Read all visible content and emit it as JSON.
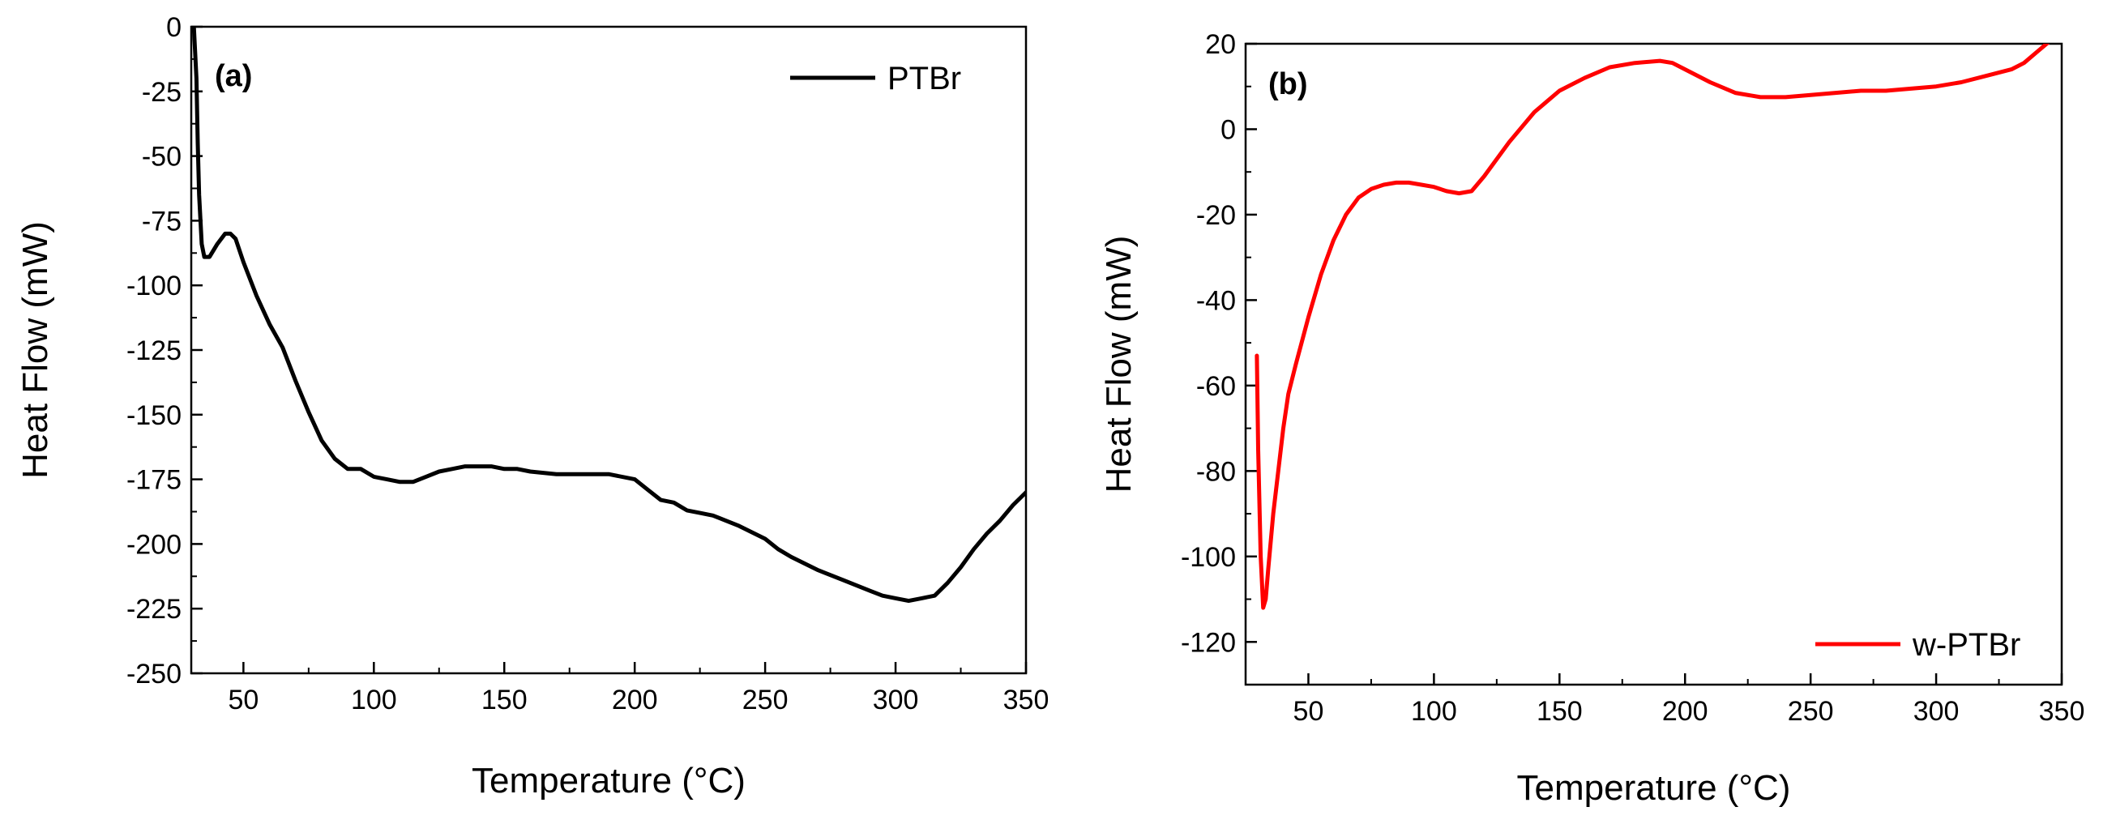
{
  "chart_data": [
    {
      "type": "line",
      "panel_label": "(a)",
      "title": "",
      "xlabel": "Temperature (°C)",
      "ylabel": "Heat Flow (mW)",
      "xlim": [
        30,
        350
      ],
      "ylim": [
        -250,
        0
      ],
      "xticks": [
        50,
        100,
        150,
        200,
        250,
        300,
        350
      ],
      "yticks": [
        0,
        -25,
        -50,
        -75,
        -100,
        -125,
        -150,
        -175,
        -200,
        -225,
        -250
      ],
      "xtick_labels": [
        "50",
        "100",
        "150",
        "200",
        "250",
        "300",
        "350"
      ],
      "ytick_labels": [
        "0",
        "-25",
        "-50",
        "-75",
        "-100",
        "-125",
        "-150",
        "-175",
        "-200",
        "-225",
        "-250"
      ],
      "legend_position": "top-right",
      "series": [
        {
          "name": "PTBr",
          "color": "#000000",
          "x": [
            31,
            32,
            32.5,
            33,
            34,
            35,
            37,
            40,
            43,
            45,
            47,
            50,
            55,
            60,
            65,
            70,
            75,
            80,
            85,
            90,
            95,
            100,
            105,
            110,
            115,
            120,
            125,
            130,
            135,
            140,
            145,
            150,
            155,
            160,
            170,
            180,
            190,
            200,
            205,
            210,
            215,
            220,
            225,
            230,
            240,
            250,
            255,
            260,
            270,
            280,
            290,
            295,
            300,
            305,
            310,
            315,
            320,
            325,
            330,
            335,
            340,
            345,
            350
          ],
          "y": [
            0,
            -20,
            -45,
            -65,
            -84,
            -89,
            -89,
            -84,
            -80,
            -80,
            -82,
            -91,
            -104,
            -115,
            -124,
            -137,
            -149,
            -160,
            -167,
            -171,
            -171,
            -174,
            -175,
            -176,
            -176,
            -174,
            -172,
            -171,
            -170,
            -170,
            -170,
            -171,
            -171,
            -172,
            -173,
            -173,
            -173,
            -175,
            -179,
            -183,
            -184,
            -187,
            -188,
            -189,
            -193,
            -198,
            -202,
            -205,
            -210,
            -214,
            -218,
            -220,
            -221,
            -222,
            -221,
            -220,
            -215,
            -209,
            -202,
            -196,
            -191,
            -185,
            -180
          ]
        }
      ]
    },
    {
      "type": "line",
      "panel_label": "(b)",
      "title": "",
      "xlabel": "Temperature (°C)",
      "ylabel": "Heat Flow (mW)",
      "xlim": [
        25,
        350
      ],
      "ylim": [
        -130,
        20
      ],
      "xticks": [
        50,
        100,
        150,
        200,
        250,
        300,
        350
      ],
      "yticks": [
        20,
        0,
        -20,
        -40,
        -60,
        -80,
        -100,
        -120
      ],
      "xtick_labels": [
        "50",
        "100",
        "150",
        "200",
        "250",
        "300",
        "350"
      ],
      "ytick_labels": [
        "20",
        "0",
        "-20",
        "-40",
        "-60",
        "-80",
        "-100",
        "-120"
      ],
      "legend_position": "bottom-right",
      "series": [
        {
          "name": "w-PTBr",
          "color": "#ff0000",
          "x": [
            29.5,
            30,
            31,
            32,
            33,
            34,
            36,
            38,
            40,
            42,
            45,
            50,
            55,
            60,
            65,
            70,
            75,
            80,
            85,
            90,
            95,
            100,
            105,
            110,
            115,
            120,
            130,
            140,
            150,
            160,
            170,
            180,
            190,
            195,
            200,
            210,
            220,
            230,
            240,
            250,
            260,
            270,
            280,
            290,
            300,
            310,
            320,
            330,
            335,
            340,
            345
          ],
          "y": [
            -53,
            -75,
            -100,
            -112,
            -110,
            -103,
            -90,
            -80,
            -70,
            -62,
            -55,
            -44,
            -34,
            -26,
            -20,
            -16,
            -14,
            -13,
            -12.5,
            -12.5,
            -13,
            -13.5,
            -14.5,
            -15,
            -14.5,
            -11,
            -3,
            4,
            9,
            12,
            14.5,
            15.5,
            16,
            15.5,
            14,
            11,
            8.5,
            7.5,
            7.5,
            8,
            8.5,
            9,
            9,
            9.5,
            10,
            11,
            12.5,
            14,
            15.5,
            18,
            20.5
          ]
        }
      ]
    }
  ]
}
